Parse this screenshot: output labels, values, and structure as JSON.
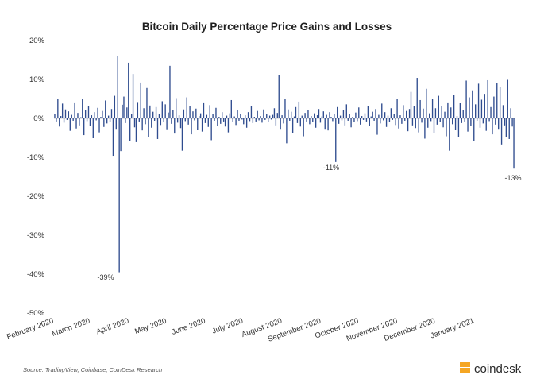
{
  "chart_data": {
    "type": "bar",
    "title": "Bitcoin Daily Percentage Price Gains and Losses",
    "xlabel": "",
    "ylabel": "",
    "ylim": [
      -50,
      20
    ],
    "y_ticks": [
      "20%",
      "10%",
      "0%",
      "-10%",
      "-20%",
      "-30%",
      "-40%",
      "-50%"
    ],
    "y_tick_values": [
      20,
      10,
      0,
      -10,
      -20,
      -30,
      -40,
      -50
    ],
    "x_tick_labels": [
      "February 2020",
      "March 2020",
      "April 2020",
      "May 2020",
      "June 2020",
      "July 2020",
      "August 2020",
      "September 2020",
      "October 2020",
      "November 2020",
      "December 2020",
      "January 2021"
    ],
    "x_start": "2020-02-01",
    "x_end": "2021-02-02",
    "bar_color": "#2f4c8f",
    "gridlines": false,
    "legend": "none",
    "series": [
      {
        "values": [
          1.2,
          -0.8,
          4.9,
          -2.1,
          0.6,
          3.8,
          -1.1,
          2.3,
          -0.4,
          1.8,
          -3.2,
          0.9,
          -0.6,
          4.1,
          -2.6,
          1.4,
          -1.8,
          0.3,
          5.0,
          -4.3,
          2.1,
          -0.7,
          3.2,
          -1.9,
          0.8,
          -5.1,
          1.6,
          -0.5,
          2.7,
          -3.6,
          0.4,
          1.9,
          -2.2,
          4.6,
          -1.3,
          0.7,
          -0.9,
          2.4,
          -9.6,
          5.8,
          -2.7,
          16.0,
          -39.5,
          -8.4,
          3.5,
          5.6,
          -1.2,
          2.8,
          14.3,
          -5.9,
          1.1,
          11.4,
          -2.3,
          -6.1,
          4.2,
          -0.8,
          9.2,
          -3.1,
          2.6,
          -1.5,
          7.8,
          -4.7,
          3.3,
          -2.4,
          1.7,
          -0.6,
          2.9,
          -5.3,
          1.2,
          -1.7,
          4.4,
          -0.9,
          3.6,
          -2.8,
          1.5,
          13.5,
          -1.4,
          2.1,
          -3.9,
          5.2,
          -1.1,
          0.8,
          -2.5,
          -8.3,
          2.3,
          -0.7,
          5.4,
          -1.6,
          3.1,
          -4.1,
          1.8,
          -0.5,
          2.5,
          -2.9,
          0.6,
          1.3,
          -3.4,
          4.1,
          -1.2,
          0.9,
          -2.2,
          3.4,
          -5.6,
          1.1,
          -0.6,
          2.7,
          -1.9,
          0.4,
          -1.4,
          1.6,
          -0.8,
          -2.1,
          0.7,
          -3.6,
          1.3,
          4.7,
          -0.9,
          0.5,
          -1.7,
          2.2,
          -0.6,
          1.1,
          -0.3,
          -1.5,
          0.8,
          -2.4,
          1.6,
          -0.7,
          3.1,
          -1.2,
          0.4,
          -0.8,
          1.9,
          -0.5,
          0.6,
          -1.1,
          2.3,
          -0.4,
          1.2,
          -0.9,
          0.7,
          -0.3,
          0.9,
          2.6,
          -1.8,
          1.4,
          11.1,
          -2.7,
          0.8,
          -1.3,
          4.9,
          -6.4,
          2.3,
          -0.6,
          1.7,
          -3.8,
          0.5,
          2.9,
          -1.2,
          4.3,
          -2.1,
          0.7,
          -4.6,
          1.4,
          -0.8,
          2.2,
          -1.5,
          0.6,
          -0.9,
          1.3,
          -2.4,
          0.8,
          2.4,
          -1.1,
          0.5,
          1.8,
          -2.7,
          0.9,
          -3.1,
          1.6,
          0.4,
          -0.7,
          1.2,
          -11.2,
          2.9,
          -1.4,
          0.7,
          -0.5,
          2.1,
          -1.8,
          3.6,
          -0.6,
          1.1,
          -2.3,
          0.4,
          -0.9,
          1.5,
          -0.7,
          2.8,
          -1.6,
          0.6,
          -0.4,
          1.3,
          -0.8,
          3.2,
          -1.9,
          0.5,
          1.7,
          -0.6,
          2.4,
          -4.2,
          0.9,
          -1.3,
          3.8,
          -0.5,
          1.6,
          -2.2,
          0.7,
          -0.9,
          2.6,
          -0.4,
          1.1,
          -1.7,
          5.1,
          -2.6,
          0.8,
          -1.4,
          3.4,
          -0.6,
          1.9,
          -3.3,
          2.4,
          6.8,
          -1.8,
          3.1,
          -2.5,
          10.4,
          -3.6,
          4.7,
          -1.1,
          2.5,
          -5.2,
          7.6,
          -2.4,
          1.3,
          -0.7,
          4.9,
          -3.8,
          2.6,
          -1.6,
          5.8,
          -0.9,
          3.2,
          -2.3,
          1.7,
          -4.6,
          4.1,
          -8.3,
          2.8,
          -1.5,
          6.1,
          -2.9,
          0.6,
          -4.7,
          3.9,
          -1.2,
          2.2,
          -0.8,
          9.7,
          -3.4,
          5.4,
          -1.9,
          7.2,
          -5.8,
          3.6,
          -0.6,
          8.9,
          -2.4,
          4.8,
          -1.3,
          6.3,
          -3.2,
          9.8,
          -0.7,
          2.9,
          -4.1,
          5.6,
          -1.6,
          9.1,
          -2.7,
          8.1,
          -6.7,
          3.4,
          -1.8,
          -4.9,
          9.9,
          -5.3,
          2.6,
          -2.1,
          -12.9
        ]
      }
    ],
    "annotations": [
      "-39%",
      "-11%",
      "-13%"
    ],
    "source": "Source: TradingView, Coinbase, CoinDesk Research",
    "brand": "coindesk",
    "brand_color": "#f5a623"
  }
}
